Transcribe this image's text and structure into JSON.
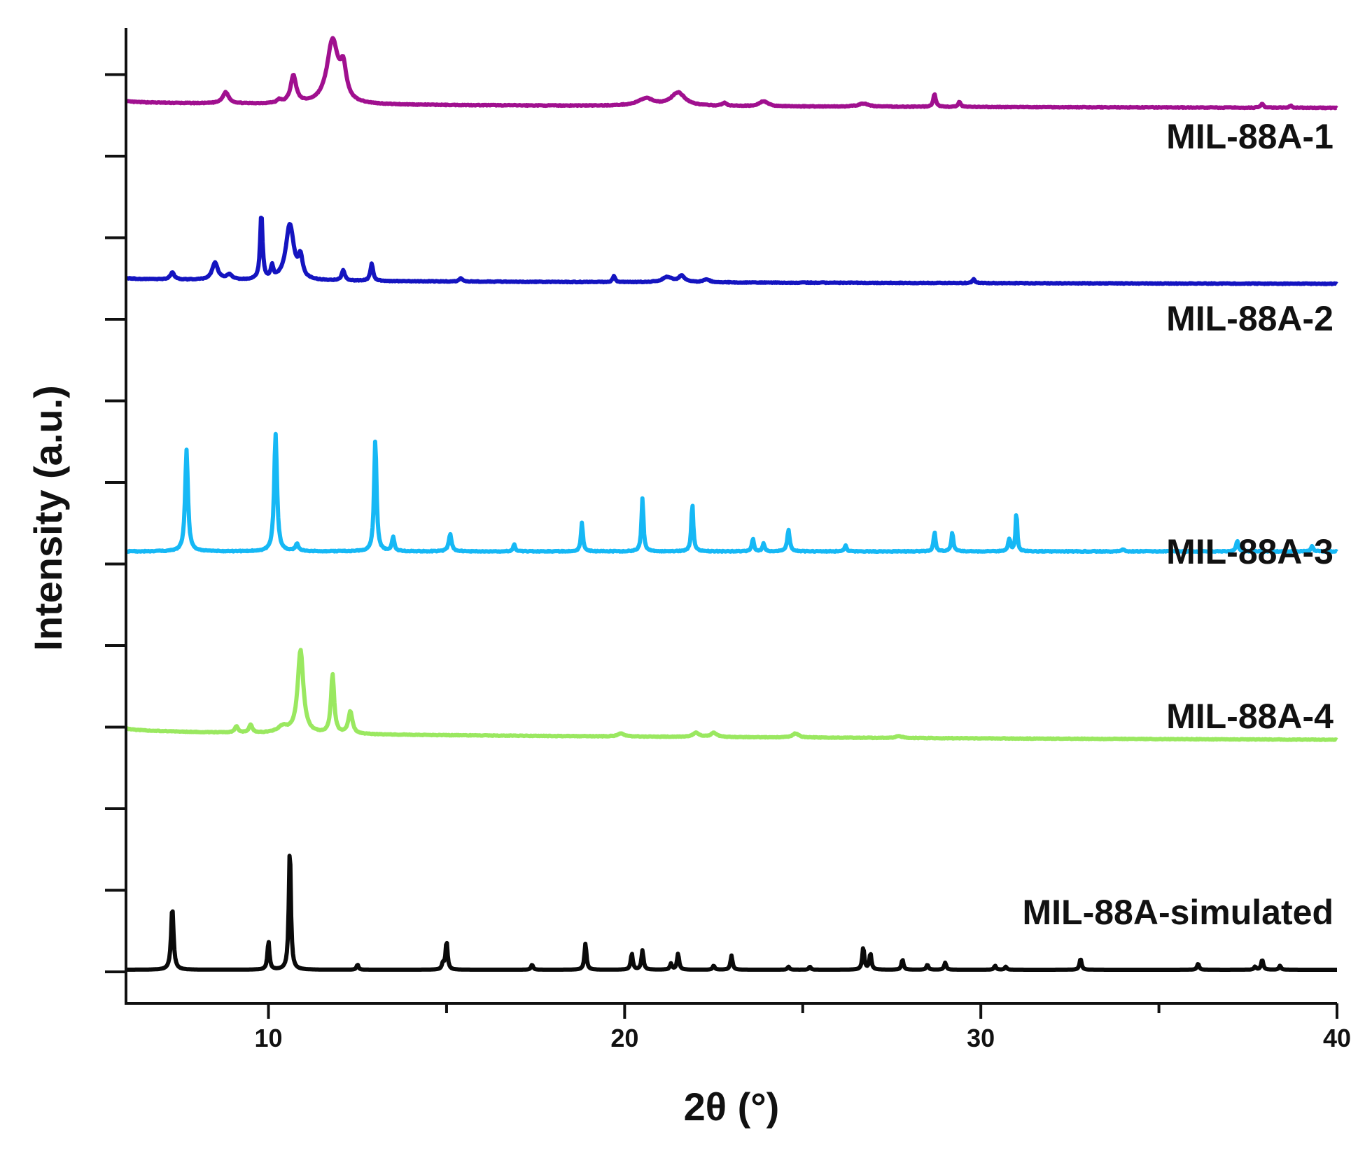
{
  "chart_data": {
    "type": "line",
    "title": "",
    "xlabel": "2θ (°)",
    "ylabel": "Intensity (a.u.)",
    "xlim": [
      6,
      40
    ],
    "xticks": [
      10,
      20,
      30,
      40
    ],
    "yticks_labeled": false,
    "grid": false,
    "legend": "inline labels at right end of each trace",
    "series": [
      {
        "name": "MIL-88A-1",
        "color": "#a0108f",
        "baseline": 0.87,
        "end": 0.8,
        "scale": 1.0,
        "noise": 0.0035,
        "peaks": [
          [
            8.8,
            0.11,
            0.15
          ],
          [
            10.3,
            0.03,
            0.1
          ],
          [
            10.7,
            0.27,
            0.14
          ],
          [
            11.8,
            0.62,
            0.28
          ],
          [
            12.1,
            0.3,
            0.15
          ],
          [
            20.6,
            0.07,
            0.4
          ],
          [
            21.5,
            0.13,
            0.35
          ],
          [
            22.8,
            0.03,
            0.1
          ],
          [
            23.9,
            0.05,
            0.2
          ],
          [
            26.7,
            0.03,
            0.25
          ],
          [
            28.7,
            0.13,
            0.06
          ],
          [
            29.4,
            0.05,
            0.06
          ],
          [
            37.9,
            0.04,
            0.06
          ],
          [
            38.7,
            0.02,
            0.06
          ]
        ]
      },
      {
        "name": "MIL-88A-2",
        "color": "#1414c0",
        "baseline": 0.92,
        "end": 0.86,
        "scale": 1.0,
        "noise": 0.0035,
        "peaks": [
          [
            7.3,
            0.07,
            0.1
          ],
          [
            8.5,
            0.17,
            0.14
          ],
          [
            8.9,
            0.05,
            0.15
          ],
          [
            9.8,
            0.65,
            0.06
          ],
          [
            10.1,
            0.12,
            0.06
          ],
          [
            10.6,
            0.55,
            0.2
          ],
          [
            10.9,
            0.2,
            0.1
          ],
          [
            12.1,
            0.1,
            0.08
          ],
          [
            12.9,
            0.17,
            0.07
          ],
          [
            15.4,
            0.03,
            0.08
          ],
          [
            19.7,
            0.06,
            0.06
          ],
          [
            21.2,
            0.05,
            0.25
          ],
          [
            21.6,
            0.06,
            0.15
          ],
          [
            22.3,
            0.03,
            0.15
          ],
          [
            29.8,
            0.04,
            0.06
          ]
        ]
      },
      {
        "name": "MIL-88A-3",
        "color": "#16b8f5",
        "baseline": 0.5,
        "end": 0.5,
        "scale": 1.0,
        "noise": 0.004,
        "peaks": [
          [
            7.7,
            1.0,
            0.07
          ],
          [
            10.2,
            1.16,
            0.07
          ],
          [
            10.8,
            0.07,
            0.08
          ],
          [
            13.0,
            1.1,
            0.06
          ],
          [
            13.5,
            0.14,
            0.06
          ],
          [
            15.1,
            0.17,
            0.07
          ],
          [
            16.9,
            0.07,
            0.05
          ],
          [
            18.8,
            0.28,
            0.05
          ],
          [
            20.5,
            0.52,
            0.05
          ],
          [
            21.9,
            0.47,
            0.05
          ],
          [
            23.6,
            0.13,
            0.05
          ],
          [
            23.9,
            0.08,
            0.05
          ],
          [
            24.6,
            0.21,
            0.06
          ],
          [
            26.2,
            0.06,
            0.05
          ],
          [
            28.7,
            0.19,
            0.05
          ],
          [
            29.2,
            0.19,
            0.05
          ],
          [
            30.8,
            0.12,
            0.06
          ],
          [
            31.0,
            0.4,
            0.04
          ],
          [
            34.0,
            0.02,
            0.06
          ],
          [
            37.2,
            0.1,
            0.06
          ],
          [
            39.3,
            0.05,
            0.06
          ]
        ]
      },
      {
        "name": "MIL-88A-4",
        "color": "#9ae860",
        "baseline": 0.42,
        "end": 0.3,
        "scale": 1.0,
        "noise": 0.003,
        "peaks": [
          [
            9.1,
            0.06,
            0.08
          ],
          [
            9.5,
            0.08,
            0.08
          ],
          [
            10.4,
            0.06,
            0.25
          ],
          [
            10.9,
            0.82,
            0.14
          ],
          [
            11.8,
            0.58,
            0.08
          ],
          [
            12.3,
            0.22,
            0.1
          ],
          [
            19.9,
            0.03,
            0.15
          ],
          [
            22.0,
            0.04,
            0.15
          ],
          [
            22.5,
            0.04,
            0.15
          ],
          [
            24.8,
            0.04,
            0.15
          ],
          [
            27.7,
            0.02,
            0.15
          ]
        ]
      },
      {
        "name": "MIL-88A-simulated",
        "color": "#0a0a0a",
        "baseline": 0.0,
        "end": 0.0,
        "scale": 1.0,
        "noise": 0.0,
        "peaks": [
          [
            7.3,
            0.62,
            0.06
          ],
          [
            10.0,
            0.28,
            0.05
          ],
          [
            10.6,
            1.22,
            0.05
          ],
          [
            12.5,
            0.05,
            0.05
          ],
          [
            14.9,
            0.06,
            0.05
          ],
          [
            15.0,
            0.28,
            0.05
          ],
          [
            17.4,
            0.05,
            0.05
          ],
          [
            18.9,
            0.26,
            0.05
          ],
          [
            20.2,
            0.16,
            0.05
          ],
          [
            20.5,
            0.19,
            0.05
          ],
          [
            21.3,
            0.06,
            0.05
          ],
          [
            21.5,
            0.16,
            0.05
          ],
          [
            22.5,
            0.04,
            0.05
          ],
          [
            23.0,
            0.14,
            0.05
          ],
          [
            24.6,
            0.03,
            0.05
          ],
          [
            25.2,
            0.03,
            0.05
          ],
          [
            26.7,
            0.22,
            0.05
          ],
          [
            26.9,
            0.16,
            0.05
          ],
          [
            27.8,
            0.1,
            0.05
          ],
          [
            28.5,
            0.05,
            0.05
          ],
          [
            29.0,
            0.07,
            0.05
          ],
          [
            30.4,
            0.04,
            0.05
          ],
          [
            30.7,
            0.03,
            0.05
          ],
          [
            32.8,
            0.11,
            0.05
          ],
          [
            36.1,
            0.06,
            0.05
          ],
          [
            37.7,
            0.03,
            0.05
          ],
          [
            37.9,
            0.1,
            0.05
          ],
          [
            38.4,
            0.04,
            0.05
          ]
        ]
      }
    ]
  },
  "colors": {
    "axis": "#111111",
    "background": "#ffffff"
  }
}
